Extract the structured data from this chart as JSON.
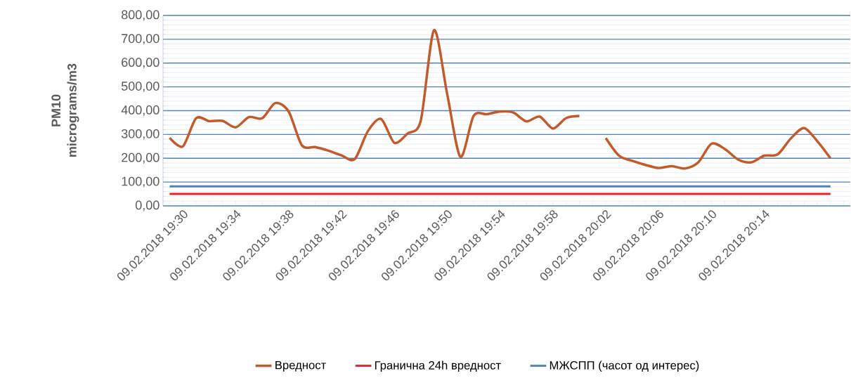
{
  "chart_data": {
    "type": "line",
    "ylabel": "PM10 micrograms/m3",
    "categories": [
      null,
      "09.02.2018 19:30",
      null,
      null,
      null,
      "09.02.2018 19:34",
      null,
      null,
      null,
      "09.02.2018 19:38",
      null,
      null,
      null,
      "09.02.2018 19:42",
      null,
      null,
      null,
      "09.02.2018 19:46",
      null,
      null,
      null,
      "09.02.2018 19:50",
      null,
      null,
      null,
      "09.02.2018 19:54",
      null,
      null,
      null,
      "09.02.2018 19:58",
      null,
      null,
      null,
      "09.02.2018 20:02",
      null,
      null,
      null,
      "09.02.2018 20:06",
      null,
      null,
      null,
      "09.02.2018 20:10",
      null,
      null,
      null,
      "09.02.2018 20:14",
      null,
      null,
      null,
      null,
      null,
      null
    ],
    "series": [
      {
        "name": "Вредност",
        "color": "#c25a2a",
        "values": [
          286,
          250,
          368,
          356,
          357,
          330,
          373,
          368,
          432,
          397,
          255,
          247,
          232,
          212,
          196,
          314,
          365,
          265,
          304,
          358,
          738,
          470,
          206,
          378,
          385,
          396,
          392,
          355,
          375,
          325,
          369,
          378,
          null,
          285,
          211,
          189,
          172,
          159,
          167,
          157,
          183,
          261,
          239,
          195,
          183,
          211,
          216,
          283,
          327,
          272,
          200,
          null
        ]
      }
    ],
    "ref_lines": [
      {
        "axis": "y",
        "value": 50,
        "label": "Гранична 24h вредност",
        "color": "#e8202a"
      },
      {
        "axis": "y",
        "value": 82,
        "label": "МЖСПП (часот од интерес)",
        "color": "#4f81bd"
      }
    ],
    "ylim": [
      0,
      800
    ],
    "yticks": [
      {
        "value": 0,
        "label": "0,00"
      },
      {
        "value": 100,
        "label": "100,00"
      },
      {
        "value": 200,
        "label": "200,00"
      },
      {
        "value": 300,
        "label": "300,00"
      },
      {
        "value": 400,
        "label": "400,00"
      },
      {
        "value": 500,
        "label": "500,00"
      },
      {
        "value": 600,
        "label": "600,00"
      },
      {
        "value": 700,
        "label": "700,00"
      },
      {
        "value": 800,
        "label": "800,00"
      }
    ],
    "grid": "y",
    "legend": "bottom"
  }
}
